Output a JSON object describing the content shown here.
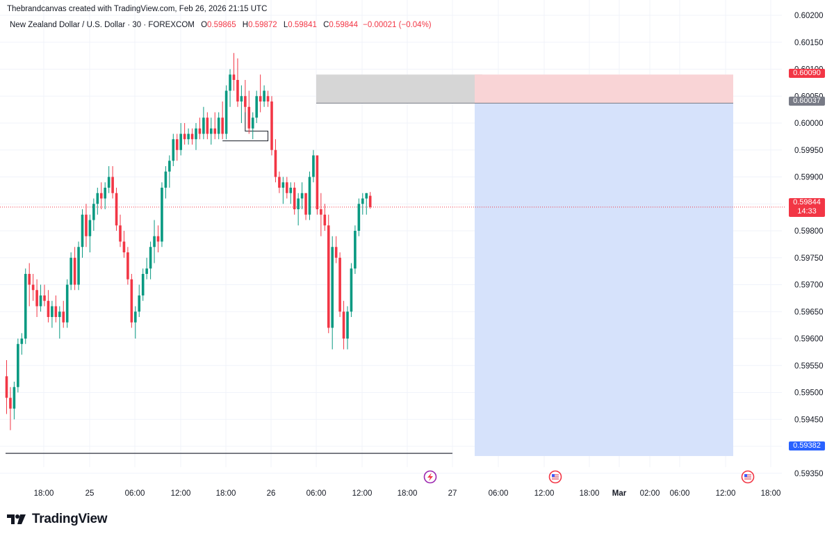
{
  "credit": "Thebrandcanvas created with TradingView.com, Feb 26, 2026 21:15 UTC",
  "legend": {
    "symbol": "New Zealand Dollar / U.S. Dollar · 30 · FOREXCOM",
    "o_label": "O",
    "o_value": "0.59865",
    "h_label": "H",
    "h_value": "0.59872",
    "l_label": "L",
    "l_value": "0.59841",
    "c_label": "C",
    "c_value": "0.59844",
    "change": "−0.00021 (−0.04%)"
  },
  "brand": "TradingView",
  "colors": {
    "up": "#089981",
    "down": "#f23645",
    "stop_zone": "#f9d4d6",
    "target_zone": "#d6e2fb",
    "grey_zone": "#d6d6d6",
    "grid": "#f0f3fa"
  },
  "icons": {
    "event_1": "lightning-icon",
    "event_2": "us-flag-icon",
    "event_3": "us-flag-icon"
  },
  "chart_data": {
    "type": "candlestick",
    "timeframe": "30",
    "y_axis": {
      "min": 0.5932,
      "max": 0.6021,
      "ticks": [
        "0.60200",
        "0.60150",
        "0.60100",
        "0.60050",
        "0.60000",
        "0.59950",
        "0.59900",
        "0.59850",
        "0.59800",
        "0.59750",
        "0.59700",
        "0.59650",
        "0.59600",
        "0.59550",
        "0.59500",
        "0.59450",
        "0.59400",
        "0.59350"
      ]
    },
    "x_axis": {
      "labels": [
        "18:00",
        "25",
        "06:00",
        "12:00",
        "18:00",
        "26",
        "06:00",
        "12:00",
        "18:00",
        "27",
        "06:00",
        "12:00",
        "18:00",
        "Mar",
        "02:00",
        "06:00",
        "12:00",
        "18:00"
      ]
    },
    "price_labels": {
      "stop": "0.60090",
      "entry": "0.60037",
      "current": "0.59844",
      "countdown": "14:33",
      "target": "0.59382"
    },
    "position": {
      "type": "short",
      "entry": 0.60037,
      "stop": 0.6009,
      "target": 0.59382
    },
    "current_price": 0.59844,
    "horizontal_level": 0.59387,
    "candles": [
      [
        0.5953,
        0.5956,
        0.5946,
        0.5949
      ],
      [
        0.5949,
        0.5951,
        0.5943,
        0.5947
      ],
      [
        0.5947,
        0.5952,
        0.5945,
        0.5951
      ],
      [
        0.5951,
        0.596,
        0.595,
        0.5959
      ],
      [
        0.5959,
        0.5961,
        0.5957,
        0.596
      ],
      [
        0.596,
        0.5973,
        0.5959,
        0.5972
      ],
      [
        0.5972,
        0.5974,
        0.5966,
        0.597
      ],
      [
        0.597,
        0.5972,
        0.5967,
        0.5969
      ],
      [
        0.5969,
        0.5971,
        0.5964,
        0.5966
      ],
      [
        0.5966,
        0.597,
        0.5965,
        0.5968
      ],
      [
        0.5968,
        0.597,
        0.5966,
        0.5967
      ],
      [
        0.5967,
        0.5969,
        0.5963,
        0.5964
      ],
      [
        0.5964,
        0.5967,
        0.5962,
        0.5966
      ],
      [
        0.5966,
        0.5968,
        0.5963,
        0.5964
      ],
      [
        0.5964,
        0.5966,
        0.596,
        0.5965
      ],
      [
        0.5965,
        0.5967,
        0.5962,
        0.5963
      ],
      [
        0.5963,
        0.5971,
        0.5962,
        0.597
      ],
      [
        0.597,
        0.5976,
        0.5969,
        0.5975
      ],
      [
        0.5975,
        0.5977,
        0.5969,
        0.597
      ],
      [
        0.597,
        0.5978,
        0.5969,
        0.5977
      ],
      [
        0.5977,
        0.5984,
        0.5975,
        0.5983
      ],
      [
        0.5983,
        0.5985,
        0.5977,
        0.5979
      ],
      [
        0.5979,
        0.5983,
        0.5976,
        0.5982
      ],
      [
        0.5982,
        0.5986,
        0.598,
        0.5985
      ],
      [
        0.5985,
        0.5988,
        0.5983,
        0.5987
      ],
      [
        0.5987,
        0.5989,
        0.5984,
        0.5986
      ],
      [
        0.5986,
        0.5989,
        0.5984,
        0.5988
      ],
      [
        0.5988,
        0.5992,
        0.5987,
        0.599
      ],
      [
        0.599,
        0.5992,
        0.5986,
        0.5987
      ],
      [
        0.5987,
        0.5988,
        0.598,
        0.5981
      ],
      [
        0.5981,
        0.5983,
        0.5977,
        0.5978
      ],
      [
        0.5978,
        0.598,
        0.5975,
        0.5976
      ],
      [
        0.5976,
        0.5977,
        0.597,
        0.5971
      ],
      [
        0.5971,
        0.5972,
        0.5962,
        0.5963
      ],
      [
        0.5963,
        0.5966,
        0.596,
        0.5965
      ],
      [
        0.5965,
        0.597,
        0.5964,
        0.5968
      ],
      [
        0.5968,
        0.5973,
        0.5967,
        0.5972
      ],
      [
        0.5972,
        0.5975,
        0.5971,
        0.5973
      ],
      [
        0.5973,
        0.5978,
        0.5971,
        0.5977
      ],
      [
        0.5977,
        0.5982,
        0.5974,
        0.5979
      ],
      [
        0.5979,
        0.5981,
        0.5976,
        0.5978
      ],
      [
        0.5978,
        0.5989,
        0.5977,
        0.5988
      ],
      [
        0.5988,
        0.5992,
        0.5986,
        0.5991
      ],
      [
        0.5991,
        0.5994,
        0.5988,
        0.5993
      ],
      [
        0.5993,
        0.5998,
        0.5992,
        0.5997
      ],
      [
        0.5997,
        0.5998,
        0.5993,
        0.5995
      ],
      [
        0.5995,
        0.6,
        0.5994,
        0.5998
      ],
      [
        0.5998,
        0.6,
        0.5996,
        0.5997
      ],
      [
        0.5997,
        0.5999,
        0.5996,
        0.5998
      ],
      [
        0.5998,
        0.5999,
        0.5996,
        0.5997
      ],
      [
        0.5997,
        0.6,
        0.5995,
        0.5999
      ],
      [
        0.5999,
        0.6001,
        0.5997,
        0.5998
      ],
      [
        0.5998,
        0.6003,
        0.5997,
        0.6001
      ],
      [
        0.6001,
        0.6002,
        0.5997,
        0.5998
      ],
      [
        0.5998,
        0.6001,
        0.5996,
        0.5999
      ],
      [
        0.5999,
        0.6002,
        0.5997,
        0.5998
      ],
      [
        0.5998,
        0.6002,
        0.5997,
        0.6001
      ],
      [
        0.6001,
        0.6004,
        0.5997,
        0.5998
      ],
      [
        0.5998,
        0.6007,
        0.5997,
        0.6006
      ],
      [
        0.6006,
        0.601,
        0.6003,
        0.6009
      ],
      [
        0.6009,
        0.6013,
        0.6006,
        0.6008
      ],
      [
        0.6008,
        0.6012,
        0.6003,
        0.6004
      ],
      [
        0.6004,
        0.6007,
        0.6,
        0.6005
      ],
      [
        0.6005,
        0.6008,
        0.6002,
        0.6003
      ],
      [
        0.6003,
        0.6006,
        0.5998,
        0.5999
      ],
      [
        0.5999,
        0.6002,
        0.5997,
        0.6001
      ],
      [
        0.6001,
        0.6006,
        0.6,
        0.6005
      ],
      [
        0.6005,
        0.6009,
        0.6002,
        0.6004
      ],
      [
        0.6004,
        0.6007,
        0.6003,
        0.6006
      ],
      [
        0.6005,
        0.6006,
        0.6003,
        0.6004
      ],
      [
        0.6004,
        0.6005,
        0.5994,
        0.5995
      ],
      [
        0.5995,
        0.5997,
        0.5989,
        0.599
      ],
      [
        0.599,
        0.5991,
        0.5987,
        0.5988
      ],
      [
        0.5988,
        0.599,
        0.5985,
        0.5989
      ],
      [
        0.5989,
        0.599,
        0.5986,
        0.5987
      ],
      [
        0.5987,
        0.5989,
        0.5985,
        0.5988
      ],
      [
        0.5988,
        0.5989,
        0.5983,
        0.5984
      ],
      [
        0.5984,
        0.5987,
        0.5981,
        0.5986
      ],
      [
        0.5986,
        0.5989,
        0.5984,
        0.5987
      ],
      [
        0.5987,
        0.5987,
        0.5982,
        0.5983
      ],
      [
        0.5983,
        0.5991,
        0.5982,
        0.599
      ],
      [
        0.599,
        0.5995,
        0.5989,
        0.5994
      ],
      [
        0.5994,
        0.5994,
        0.5983,
        0.5984
      ],
      [
        0.5984,
        0.5987,
        0.5979,
        0.5983
      ],
      [
        0.5983,
        0.5985,
        0.598,
        0.5981
      ],
      [
        0.5981,
        0.5983,
        0.5961,
        0.5962
      ],
      [
        0.5962,
        0.5979,
        0.5958,
        0.5977
      ],
      [
        0.5977,
        0.5979,
        0.5974,
        0.5975
      ],
      [
        0.5975,
        0.5976,
        0.5964,
        0.5965
      ],
      [
        0.5965,
        0.5967,
        0.5958,
        0.596
      ],
      [
        0.596,
        0.5966,
        0.5958,
        0.5965
      ],
      [
        0.5965,
        0.5974,
        0.5964,
        0.5973
      ],
      [
        0.5973,
        0.5981,
        0.5972,
        0.598
      ],
      [
        0.598,
        0.5986,
        0.5979,
        0.5985
      ],
      [
        0.5985,
        0.5987,
        0.5983,
        0.5986
      ],
      [
        0.5986,
        0.5987,
        0.5983,
        0.5987
      ],
      [
        0.59865,
        0.59872,
        0.59841,
        0.59844
      ]
    ]
  }
}
